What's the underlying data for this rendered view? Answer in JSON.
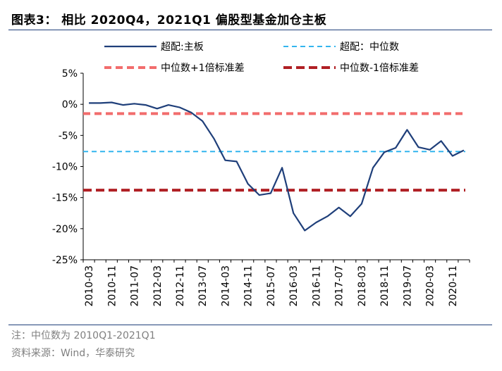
{
  "header": {
    "title": "图表3：  相比 2020Q4，2021Q1 偏股型基金加仓主板"
  },
  "footer": {
    "note": "注：中位数为 2010Q1-2021Q1",
    "source": "资料来源：Wind，华泰研究"
  },
  "chart_data": {
    "type": "line",
    "title": "图表3：  相比 2020Q4，2021Q1 偏股型基金加仓主板",
    "x": [
      "2010-03",
      "2010-07",
      "2010-11",
      "2011-03",
      "2011-07",
      "2011-11",
      "2012-03",
      "2012-07",
      "2012-11",
      "2013-03",
      "2013-07",
      "2013-11",
      "2014-03",
      "2014-07",
      "2014-11",
      "2015-03",
      "2015-07",
      "2015-11",
      "2016-03",
      "2016-07",
      "2016-11",
      "2017-03",
      "2017-07",
      "2017-11",
      "2018-03",
      "2018-07",
      "2018-11",
      "2019-03",
      "2019-07",
      "2019-11",
      "2020-03",
      "2020-07",
      "2020-11",
      "2021-03"
    ],
    "xtick_labels": [
      "2010-03",
      "2010-11",
      "2011-07",
      "2012-03",
      "2012-11",
      "2013-07",
      "2014-03",
      "2014-11",
      "2015-07",
      "2016-03",
      "2016-11",
      "2017-07",
      "2018-03",
      "2018-11",
      "2019-07",
      "2020-03",
      "2020-11"
    ],
    "ylim": [
      -25,
      5
    ],
    "yticks": [
      5,
      0,
      -5,
      -10,
      -15,
      -20,
      -25
    ],
    "ytick_labels": [
      "5%",
      "0%",
      "-5%",
      "-10%",
      "-15%",
      "-20%",
      "-25%"
    ],
    "series": [
      {
        "name": "超配:主板",
        "style": "solid",
        "color": "#1f3f7a",
        "values": [
          0.2,
          0.2,
          0.3,
          -0.1,
          0.1,
          -0.1,
          -0.7,
          -0.1,
          -0.5,
          -1.3,
          -2.7,
          -5.5,
          -9.0,
          -9.2,
          -12.8,
          -14.6,
          -14.3,
          -10.2,
          -17.5,
          -20.3,
          -19.0,
          -18.0,
          -16.6,
          -18.0,
          -16.0,
          -10.2,
          -7.7,
          -7.0,
          -4.1,
          -6.9,
          -7.3,
          -5.9,
          -8.3,
          -7.4
        ]
      },
      {
        "name": "超配：中位数",
        "style": "dashed",
        "color": "#33b5ee",
        "constant": -7.6
      },
      {
        "name": "中位数+1倍标准差",
        "style": "dashed",
        "color": "#f26d6d",
        "constant": -1.5
      },
      {
        "name": "中位数-1倍标准差",
        "style": "dashed",
        "color": "#b01f24",
        "constant": -13.8
      }
    ],
    "grid": false,
    "legend": "top"
  }
}
